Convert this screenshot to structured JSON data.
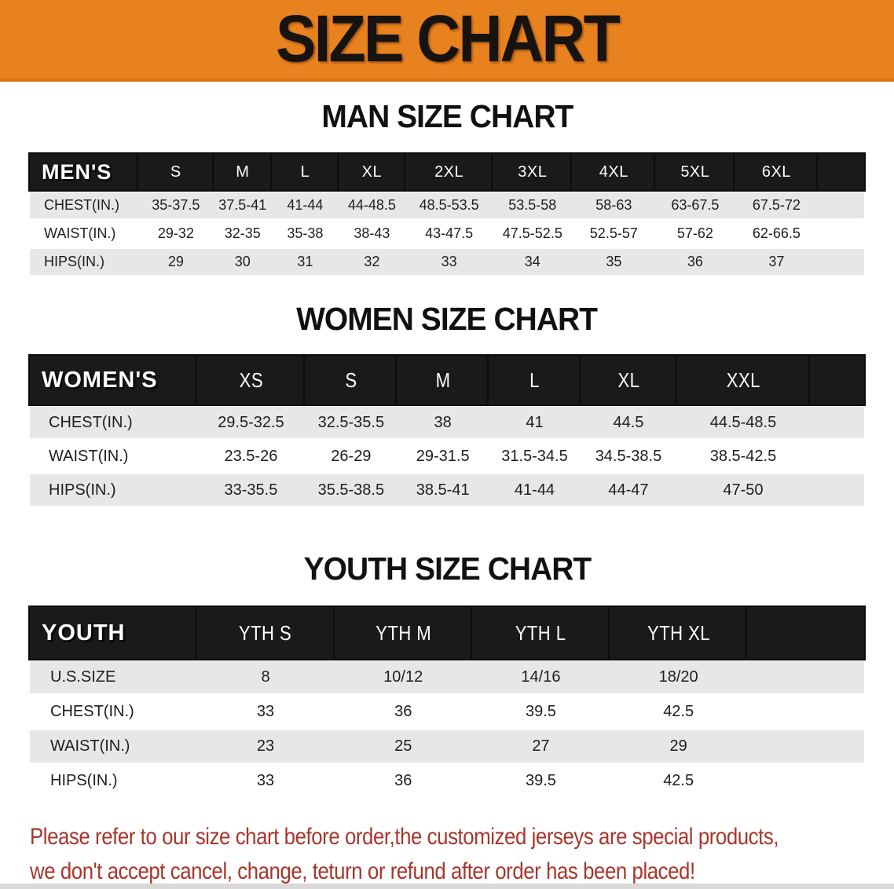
{
  "banner": {
    "title": "SIZE CHART"
  },
  "sections": [
    {
      "title": "MAN SIZE CHART",
      "header_label": "MEN'S",
      "columns": [
        "S",
        "M",
        "L",
        "XL",
        "2XL",
        "3XL",
        "4XL",
        "5XL",
        "6XL"
      ],
      "rows": [
        {
          "label": "CHEST(IN.)",
          "values": [
            "35-37.5",
            "37.5-41",
            "41-44",
            "44-48.5",
            "48.5-53.5",
            "53.5-58",
            "58-63",
            "63-67.5",
            "67.5-72"
          ]
        },
        {
          "label": "WAIST(IN.)",
          "values": [
            "29-32",
            "32-35",
            "35-38",
            "38-43",
            "43-47.5",
            "47.5-52.5",
            "52.5-57",
            "57-62",
            "62-66.5"
          ]
        },
        {
          "label": "HIPS(IN.)",
          "values": [
            "29",
            "30",
            "31",
            "32",
            "33",
            "34",
            "35",
            "36",
            "37"
          ]
        }
      ]
    },
    {
      "title": "WOMEN SIZE CHART",
      "header_label": "WOMEN'S",
      "columns": [
        "XS",
        "S",
        "M",
        "L",
        "XL",
        "XXL"
      ],
      "rows": [
        {
          "label": "CHEST(IN.)",
          "values": [
            "29.5-32.5",
            "32.5-35.5",
            "38",
            "41",
            "44.5",
            "44.5-48.5"
          ]
        },
        {
          "label": "WAIST(IN.)",
          "values": [
            "23.5-26",
            "26-29",
            "29-31.5",
            "31.5-34.5",
            "34.5-38.5",
            "38.5-42.5"
          ]
        },
        {
          "label": "HIPS(IN.)",
          "values": [
            "33-35.5",
            "35.5-38.5",
            "38.5-41",
            "41-44",
            "44-47",
            "47-50"
          ]
        }
      ]
    },
    {
      "title": "YOUTH SIZE CHART",
      "header_label": "YOUTH",
      "columns": [
        "YTH S",
        "YTH M",
        "YTH L",
        "YTH XL"
      ],
      "rows": [
        {
          "label": "U.S.SIZE",
          "values": [
            "8",
            "10/12",
            "14/16",
            "18/20"
          ]
        },
        {
          "label": "CHEST(IN.)",
          "values": [
            "33",
            "36",
            "39.5",
            "42.5"
          ]
        },
        {
          "label": "WAIST(IN.)",
          "values": [
            "23",
            "25",
            "27",
            "29"
          ]
        },
        {
          "label": "HIPS(IN.)",
          "values": [
            "33",
            "36",
            "39.5",
            "42.5"
          ]
        }
      ]
    }
  ],
  "disclaimer": {
    "line1": "Please refer to our size chart before order,the customized jerseys are special products,",
    "line2": "we don't accept cancel, change, teturn or refund after order has been placed!"
  },
  "colors": {
    "banner_bg": "#E8821F",
    "banner_text": "#161310",
    "header_bg": "#1C1A19",
    "header_text": "#FFFFFF",
    "row_gray": "#E8E7E7",
    "disclaimer_red": "#A8352B"
  }
}
